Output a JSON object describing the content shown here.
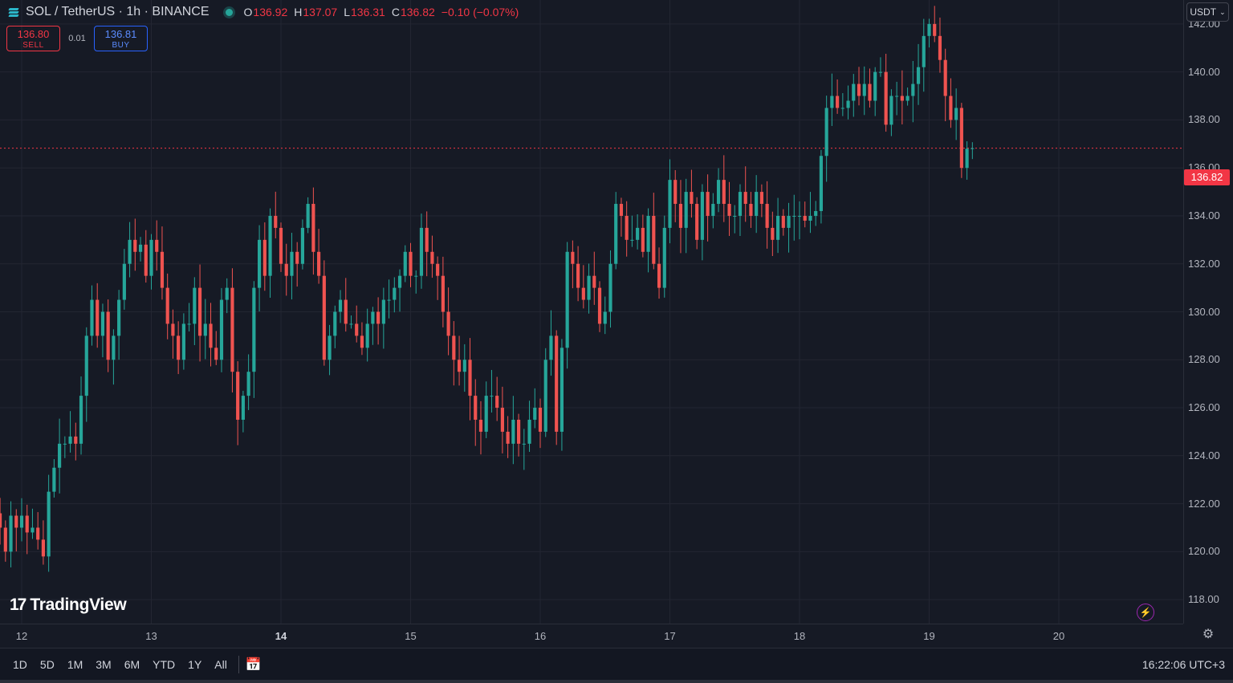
{
  "header": {
    "title": "SOL / TetherUS · 1h · BINANCE",
    "ohlc": [
      {
        "key": "O",
        "value": "136.92"
      },
      {
        "key": "H",
        "value": "137.07"
      },
      {
        "key": "L",
        "value": "136.31"
      },
      {
        "key": "C",
        "value": "136.82"
      }
    ],
    "change": "−0.10 (−0.07%)"
  },
  "trade": {
    "sell_price": "136.80",
    "sell_label": "SELL",
    "spread": "0.01",
    "buy_price": "136.81",
    "buy_label": "BUY"
  },
  "currency_select": "USDT",
  "current_price": "136.82",
  "logo_text": "TradingView",
  "bottom_bar": {
    "ranges": [
      "1D",
      "5D",
      "1M",
      "3M",
      "6M",
      "YTD",
      "1Y",
      "All"
    ],
    "clock": "16:22:06 UTC+3"
  },
  "colors": {
    "up": "#26a69a",
    "down": "#ef5350",
    "background": "#161a25",
    "grid": "#232632"
  },
  "icons": [
    "symbol-icon",
    "calendar-range-icon",
    "bolt-icon",
    "gear-icon"
  ],
  "chart_data": {
    "type": "candlestick",
    "interval": "1h",
    "ylim": [
      117,
      143
    ],
    "y_ticks": [
      "118.00",
      "120.00",
      "122.00",
      "124.00",
      "126.00",
      "128.00",
      "130.00",
      "132.00",
      "134.00",
      "136.00",
      "138.00",
      "140.00",
      "142.00"
    ],
    "x_ticks": [
      {
        "label": "12",
        "major": false
      },
      {
        "label": "13",
        "major": false
      },
      {
        "label": "14",
        "major": true
      },
      {
        "label": "15",
        "major": false
      },
      {
        "label": "16",
        "major": false
      },
      {
        "label": "17",
        "major": false
      },
      {
        "label": "18",
        "major": false
      },
      {
        "label": "19",
        "major": false
      },
      {
        "label": "20",
        "major": false
      }
    ],
    "bars_per_day": 24,
    "first_tick_index": 4,
    "last_price": 136.82,
    "closes": [
      121.0,
      120.0,
      121.5,
      121.0,
      121.5,
      120.8,
      121.0,
      120.5,
      119.8,
      122.5,
      123.5,
      124.5,
      124.5,
      124.8,
      124.5,
      126.5,
      129.0,
      130.5,
      129.0,
      130.0,
      128.0,
      129.0,
      130.5,
      132.0,
      133.0,
      132.5,
      132.8,
      131.5,
      133.0,
      132.5,
      131.0,
      129.5,
      129.0,
      128.0,
      129.5,
      129.5,
      131.0,
      129.0,
      129.5,
      128.5,
      128.0,
      130.5,
      131.0,
      127.5,
      125.5,
      126.5,
      127.5,
      131.0,
      133.0,
      131.5,
      134.0,
      133.5,
      132.0,
      131.5,
      132.5,
      132.0,
      133.5,
      134.5,
      132.5,
      131.5,
      128.0,
      129.0,
      130.0,
      130.5,
      129.5,
      129.5,
      129.0,
      128.5,
      129.5,
      130.0,
      129.5,
      130.5,
      130.5,
      131.0,
      131.5,
      132.5,
      131.5,
      131.5,
      133.5,
      132.5,
      132.0,
      131.5,
      130.0,
      129.0,
      128.0,
      127.5,
      128.0,
      126.5,
      125.5,
      125.0,
      126.5,
      126.5,
      126.0,
      125.0,
      124.5,
      125.5,
      124.5,
      124.5,
      125.5,
      126.0,
      125.0,
      128.0,
      129.0,
      125.0,
      128.5,
      132.5,
      132.0,
      131.0,
      130.5,
      131.5,
      131.0,
      129.5,
      130.0,
      132.0,
      134.5,
      134.0,
      133.0,
      133.0,
      133.5,
      132.5,
      134.0,
      132.0,
      131.0,
      133.5,
      135.5,
      134.5,
      133.5,
      135.0,
      134.5,
      133.0,
      135.0,
      134.0,
      134.5,
      135.5,
      134.5,
      134.0,
      134.0,
      135.0,
      134.5,
      134.0,
      135.0,
      134.5,
      133.5,
      133.0,
      134.0,
      133.5,
      134.0,
      134.0,
      134.0,
      133.8,
      134.0,
      134.2,
      136.5,
      138.5,
      139.0,
      138.5,
      138.5,
      138.8,
      139.5,
      139.0,
      139.5,
      138.8,
      140.0,
      140.0,
      137.8,
      139.0,
      139.0,
      138.8,
      139.0,
      139.5,
      140.2,
      141.5,
      142.0,
      141.5,
      140.5,
      139.0,
      138.0,
      138.5,
      136.0,
      136.8,
      136.82
    ]
  }
}
